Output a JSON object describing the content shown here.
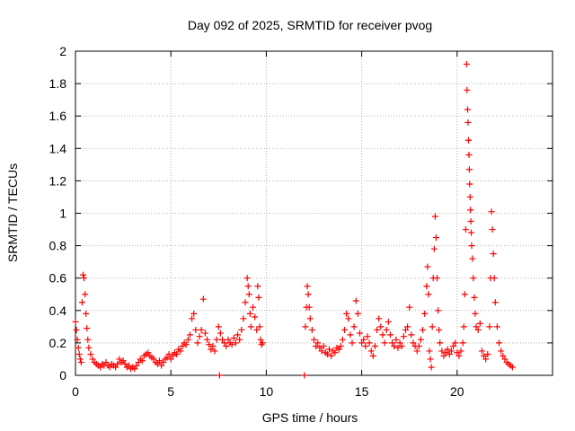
{
  "chart_data": {
    "type": "scatter",
    "title": "Day 092 of 2025, SRMTID for receiver pvog",
    "xlabel": "GPS time / hours",
    "ylabel": "SRMTID / TECUs",
    "xlim": [
      0,
      25
    ],
    "ylim": [
      0,
      2
    ],
    "xticks": [
      "0",
      "5",
      "10",
      "15",
      "20"
    ],
    "xtick_values": [
      0,
      5,
      10,
      15,
      20
    ],
    "yticks": [
      "0",
      "0.2",
      "0.4",
      "0.6",
      "0.8",
      "1",
      "1.2",
      "1.4",
      "1.6",
      "1.8",
      "2"
    ],
    "ytick_values": [
      0,
      0.2,
      0.4,
      0.6,
      0.8,
      1.0,
      1.2,
      1.4,
      1.6,
      1.8,
      2.0
    ],
    "grid": true,
    "marker": "plus",
    "color": "#ff0000",
    "series": [
      {
        "points": [
          [
            0.0,
            0.33
          ],
          [
            0.05,
            0.28
          ],
          [
            0.1,
            0.22
          ],
          [
            0.15,
            0.17
          ],
          [
            0.2,
            0.13
          ],
          [
            0.25,
            0.1
          ],
          [
            0.3,
            0.08
          ],
          [
            0.35,
            0.45
          ],
          [
            0.4,
            0.62
          ],
          [
            0.45,
            0.6
          ],
          [
            0.5,
            0.5
          ],
          [
            0.55,
            0.38
          ],
          [
            0.6,
            0.29
          ],
          [
            0.65,
            0.22
          ],
          [
            0.7,
            0.17
          ],
          [
            0.8,
            0.13
          ],
          [
            0.9,
            0.1
          ],
          [
            1.0,
            0.08
          ],
          [
            1.1,
            0.07
          ],
          [
            1.2,
            0.06
          ],
          [
            1.3,
            0.05
          ],
          [
            1.4,
            0.07
          ],
          [
            1.5,
            0.06
          ],
          [
            1.6,
            0.08
          ],
          [
            1.7,
            0.06
          ],
          [
            1.8,
            0.05
          ],
          [
            1.9,
            0.07
          ],
          [
            2.0,
            0.06
          ],
          [
            2.1,
            0.05
          ],
          [
            2.2,
            0.07
          ],
          [
            2.3,
            0.1
          ],
          [
            2.4,
            0.08
          ],
          [
            2.5,
            0.09
          ],
          [
            2.6,
            0.07
          ],
          [
            2.7,
            0.05
          ],
          [
            2.8,
            0.06
          ],
          [
            2.9,
            0.04
          ],
          [
            3.0,
            0.05
          ],
          [
            3.1,
            0.04
          ],
          [
            3.2,
            0.06
          ],
          [
            3.3,
            0.08
          ],
          [
            3.4,
            0.1
          ],
          [
            3.5,
            0.09
          ],
          [
            3.6,
            0.12
          ],
          [
            3.7,
            0.13
          ],
          [
            3.8,
            0.14
          ],
          [
            3.9,
            0.12
          ],
          [
            4.0,
            0.11
          ],
          [
            4.1,
            0.1
          ],
          [
            4.2,
            0.08
          ],
          [
            4.3,
            0.07
          ],
          [
            4.4,
            0.09
          ],
          [
            4.5,
            0.06
          ],
          [
            4.6,
            0.08
          ],
          [
            4.7,
            0.1
          ],
          [
            4.8,
            0.11
          ],
          [
            4.9,
            0.13
          ],
          [
            5.0,
            0.1
          ],
          [
            5.1,
            0.12
          ],
          [
            5.2,
            0.14
          ],
          [
            5.3,
            0.13
          ],
          [
            5.4,
            0.16
          ],
          [
            5.5,
            0.15
          ],
          [
            5.6,
            0.18
          ],
          [
            5.7,
            0.2
          ],
          [
            5.8,
            0.19
          ],
          [
            5.9,
            0.22
          ],
          [
            6.0,
            0.25
          ],
          [
            6.1,
            0.35
          ],
          [
            6.2,
            0.38
          ],
          [
            6.3,
            0.28
          ],
          [
            6.4,
            0.2
          ],
          [
            6.5,
            0.24
          ],
          [
            6.6,
            0.28
          ],
          [
            6.7,
            0.47
          ],
          [
            6.8,
            0.26
          ],
          [
            6.9,
            0.22
          ],
          [
            7.0,
            0.19
          ],
          [
            7.1,
            0.16
          ],
          [
            7.2,
            0.18
          ],
          [
            7.3,
            0.15
          ],
          [
            7.4,
            0.22
          ],
          [
            7.5,
            0.3
          ],
          [
            7.55,
            0.0
          ],
          [
            7.6,
            0.26
          ],
          [
            7.7,
            0.22
          ],
          [
            7.8,
            0.2
          ],
          [
            7.9,
            0.18
          ],
          [
            8.0,
            0.22
          ],
          [
            8.1,
            0.2
          ],
          [
            8.2,
            0.19
          ],
          [
            8.3,
            0.23
          ],
          [
            8.4,
            0.2
          ],
          [
            8.5,
            0.25
          ],
          [
            8.6,
            0.22
          ],
          [
            8.7,
            0.28
          ],
          [
            8.8,
            0.35
          ],
          [
            8.9,
            0.45
          ],
          [
            9.0,
            0.6
          ],
          [
            9.05,
            0.55
          ],
          [
            9.1,
            0.5
          ],
          [
            9.15,
            0.38
          ],
          [
            9.2,
            0.3
          ],
          [
            9.3,
            0.42
          ],
          [
            9.4,
            0.36
          ],
          [
            9.5,
            0.28
          ],
          [
            9.55,
            0.55
          ],
          [
            9.6,
            0.48
          ],
          [
            9.65,
            0.3
          ],
          [
            9.7,
            0.22
          ],
          [
            9.75,
            0.19
          ],
          [
            9.8,
            0.2
          ],
          [
            12.0,
            0.0
          ],
          [
            12.05,
            0.3
          ],
          [
            12.1,
            0.42
          ],
          [
            12.15,
            0.55
          ],
          [
            12.2,
            0.5
          ],
          [
            12.25,
            0.42
          ],
          [
            12.3,
            0.35
          ],
          [
            12.4,
            0.28
          ],
          [
            12.5,
            0.22
          ],
          [
            12.6,
            0.18
          ],
          [
            12.7,
            0.2
          ],
          [
            12.8,
            0.17
          ],
          [
            12.9,
            0.15
          ],
          [
            13.0,
            0.18
          ],
          [
            13.1,
            0.14
          ],
          [
            13.2,
            0.13
          ],
          [
            13.3,
            0.16
          ],
          [
            13.4,
            0.12
          ],
          [
            13.5,
            0.15
          ],
          [
            13.6,
            0.14
          ],
          [
            13.7,
            0.17
          ],
          [
            13.8,
            0.16
          ],
          [
            13.9,
            0.18
          ],
          [
            14.0,
            0.22
          ],
          [
            14.1,
            0.28
          ],
          [
            14.2,
            0.38
          ],
          [
            14.3,
            0.35
          ],
          [
            14.4,
            0.25
          ],
          [
            14.5,
            0.2
          ],
          [
            14.6,
            0.3
          ],
          [
            14.7,
            0.46
          ],
          [
            14.8,
            0.38
          ],
          [
            14.9,
            0.26
          ],
          [
            15.0,
            0.2
          ],
          [
            15.1,
            0.22
          ],
          [
            15.2,
            0.18
          ],
          [
            15.3,
            0.24
          ],
          [
            15.4,
            0.2
          ],
          [
            15.5,
            0.15
          ],
          [
            15.6,
            0.12
          ],
          [
            15.7,
            0.18
          ],
          [
            15.8,
            0.28
          ],
          [
            15.9,
            0.35
          ],
          [
            16.0,
            0.3
          ],
          [
            16.1,
            0.25
          ],
          [
            16.2,
            0.2
          ],
          [
            16.3,
            0.28
          ],
          [
            16.4,
            0.33
          ],
          [
            16.5,
            0.25
          ],
          [
            16.6,
            0.2
          ],
          [
            16.7,
            0.18
          ],
          [
            16.8,
            0.22
          ],
          [
            16.9,
            0.17
          ],
          [
            17.0,
            0.2
          ],
          [
            17.1,
            0.18
          ],
          [
            17.2,
            0.24
          ],
          [
            17.3,
            0.28
          ],
          [
            17.4,
            0.3
          ],
          [
            17.5,
            0.42
          ],
          [
            17.6,
            0.25
          ],
          [
            17.7,
            0.2
          ],
          [
            17.8,
            0.18
          ],
          [
            17.9,
            0.15
          ],
          [
            18.0,
            0.18
          ],
          [
            18.1,
            0.22
          ],
          [
            18.2,
            0.28
          ],
          [
            18.3,
            0.38
          ],
          [
            18.4,
            0.55
          ],
          [
            18.45,
            0.67
          ],
          [
            18.5,
            0.5
          ],
          [
            18.55,
            0.15
          ],
          [
            18.6,
            0.1
          ],
          [
            18.65,
            0.05
          ],
          [
            18.7,
            0.3
          ],
          [
            18.75,
            0.6
          ],
          [
            18.8,
            0.78
          ],
          [
            18.85,
            0.98
          ],
          [
            18.9,
            0.85
          ],
          [
            18.95,
            0.6
          ],
          [
            19.0,
            0.4
          ],
          [
            19.05,
            0.28
          ],
          [
            19.1,
            0.2
          ],
          [
            19.2,
            0.15
          ],
          [
            19.3,
            0.12
          ],
          [
            19.4,
            0.14
          ],
          [
            19.5,
            0.16
          ],
          [
            19.6,
            0.13
          ],
          [
            19.7,
            0.15
          ],
          [
            19.8,
            0.18
          ],
          [
            19.9,
            0.2
          ],
          [
            20.0,
            0.14
          ],
          [
            20.1,
            0.12
          ],
          [
            20.2,
            0.15
          ],
          [
            20.3,
            0.2
          ],
          [
            20.35,
            0.3
          ],
          [
            20.4,
            0.5
          ],
          [
            20.45,
            0.9
          ],
          [
            20.5,
            1.92
          ],
          [
            20.52,
            1.76
          ],
          [
            20.55,
            1.64
          ],
          [
            20.57,
            1.56
          ],
          [
            20.6,
            1.45
          ],
          [
            20.62,
            1.36
          ],
          [
            20.64,
            1.27
          ],
          [
            20.66,
            1.18
          ],
          [
            20.68,
            1.1
          ],
          [
            20.7,
            1.02
          ],
          [
            20.72,
            0.95
          ],
          [
            20.74,
            0.88
          ],
          [
            20.76,
            0.8
          ],
          [
            20.8,
            0.72
          ],
          [
            20.85,
            0.6
          ],
          [
            20.9,
            0.48
          ],
          [
            20.95,
            0.38
          ],
          [
            21.0,
            0.3
          ],
          [
            21.1,
            0.28
          ],
          [
            21.2,
            0.32
          ],
          [
            21.3,
            0.15
          ],
          [
            21.4,
            0.12
          ],
          [
            21.5,
            0.1
          ],
          [
            21.6,
            0.13
          ],
          [
            21.7,
            0.3
          ],
          [
            21.75,
            0.6
          ],
          [
            21.8,
            1.01
          ],
          [
            21.85,
            0.9
          ],
          [
            21.9,
            0.75
          ],
          [
            21.95,
            0.6
          ],
          [
            22.0,
            0.45
          ],
          [
            22.1,
            0.3
          ],
          [
            22.2,
            0.2
          ],
          [
            22.3,
            0.15
          ],
          [
            22.4,
            0.12
          ],
          [
            22.5,
            0.1
          ],
          [
            22.6,
            0.08
          ],
          [
            22.7,
            0.07
          ],
          [
            22.8,
            0.06
          ],
          [
            22.9,
            0.05
          ]
        ]
      }
    ]
  }
}
